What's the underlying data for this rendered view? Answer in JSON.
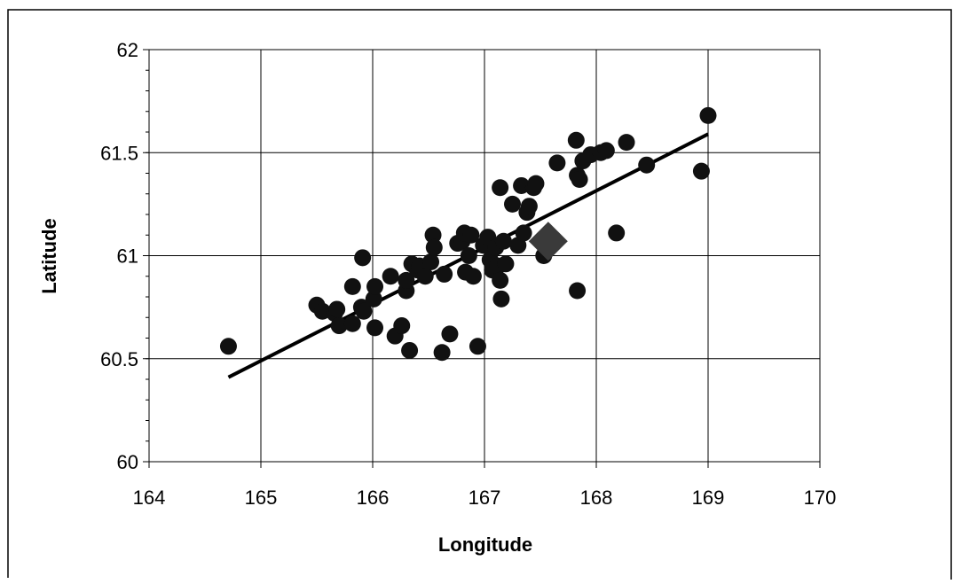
{
  "chart_data": {
    "type": "scatter",
    "title": "",
    "xlabel": "Longitude",
    "ylabel": "Latitude",
    "xlim": [
      164,
      170
    ],
    "ylim": [
      60,
      62
    ],
    "xticks": [
      "164",
      "165",
      "166",
      "167",
      "168",
      "169",
      "170"
    ],
    "yticks": [
      "60",
      "60.5",
      "61",
      "61.5",
      "62"
    ],
    "grid": true,
    "legend": "none",
    "colors": {
      "points": "#111111",
      "highlight": "#3a3a3a",
      "trendline": "#000000",
      "grid": "#000000",
      "frame": "#000000"
    },
    "series": [
      {
        "marker": "circle",
        "points": [
          [
            164.71,
            60.56
          ],
          [
            165.5,
            60.76
          ],
          [
            165.55,
            60.73
          ],
          [
            165.66,
            60.72
          ],
          [
            165.68,
            60.74
          ],
          [
            165.7,
            60.66
          ],
          [
            165.82,
            60.67
          ],
          [
            165.82,
            60.85
          ],
          [
            165.9,
            60.75
          ],
          [
            165.92,
            60.73
          ],
          [
            165.91,
            60.99
          ],
          [
            166.01,
            60.79
          ],
          [
            166.02,
            60.85
          ],
          [
            166.02,
            60.65
          ],
          [
            166.16,
            60.9
          ],
          [
            166.2,
            60.61
          ],
          [
            166.26,
            60.66
          ],
          [
            166.3,
            60.83
          ],
          [
            166.3,
            60.88
          ],
          [
            166.33,
            60.54
          ],
          [
            166.35,
            60.96
          ],
          [
            166.4,
            60.93
          ],
          [
            166.42,
            60.95
          ],
          [
            166.47,
            60.9
          ],
          [
            166.52,
            60.97
          ],
          [
            166.54,
            61.1
          ],
          [
            166.55,
            61.04
          ],
          [
            166.62,
            60.53
          ],
          [
            166.64,
            60.91
          ],
          [
            166.69,
            60.62
          ],
          [
            166.76,
            61.06
          ],
          [
            166.8,
            61.07
          ],
          [
            166.82,
            61.11
          ],
          [
            166.83,
            60.92
          ],
          [
            166.86,
            61.0
          ],
          [
            166.88,
            61.1
          ],
          [
            166.9,
            60.9
          ],
          [
            166.94,
            60.56
          ],
          [
            166.99,
            61.05
          ],
          [
            167.03,
            61.09
          ],
          [
            167.05,
            60.98
          ],
          [
            167.07,
            60.93
          ],
          [
            167.1,
            61.04
          ],
          [
            167.12,
            60.95
          ],
          [
            167.14,
            61.33
          ],
          [
            167.15,
            60.79
          ],
          [
            167.14,
            60.88
          ],
          [
            167.17,
            61.07
          ],
          [
            167.19,
            60.96
          ],
          [
            167.25,
            61.25
          ],
          [
            167.3,
            61.05
          ],
          [
            167.33,
            61.34
          ],
          [
            167.35,
            61.11
          ],
          [
            167.38,
            61.21
          ],
          [
            167.4,
            61.24
          ],
          [
            167.44,
            61.33
          ],
          [
            167.46,
            61.35
          ],
          [
            167.53,
            61.0
          ],
          [
            167.65,
            61.45
          ],
          [
            167.82,
            61.56
          ],
          [
            167.83,
            61.39
          ],
          [
            167.85,
            61.37
          ],
          [
            167.88,
            61.46
          ],
          [
            167.95,
            61.49
          ],
          [
            168.04,
            61.5
          ],
          [
            168.09,
            61.51
          ],
          [
            168.18,
            61.11
          ],
          [
            168.27,
            61.55
          ],
          [
            168.45,
            61.44
          ],
          [
            168.94,
            61.41
          ],
          [
            169.0,
            61.68
          ],
          [
            167.83,
            60.83
          ]
        ]
      },
      {
        "marker": "diamond",
        "points": [
          [
            167.57,
            61.07
          ]
        ]
      }
    ],
    "trendline": {
      "x": [
        164.71,
        169.0
      ],
      "y": [
        60.41,
        61.59
      ]
    }
  }
}
